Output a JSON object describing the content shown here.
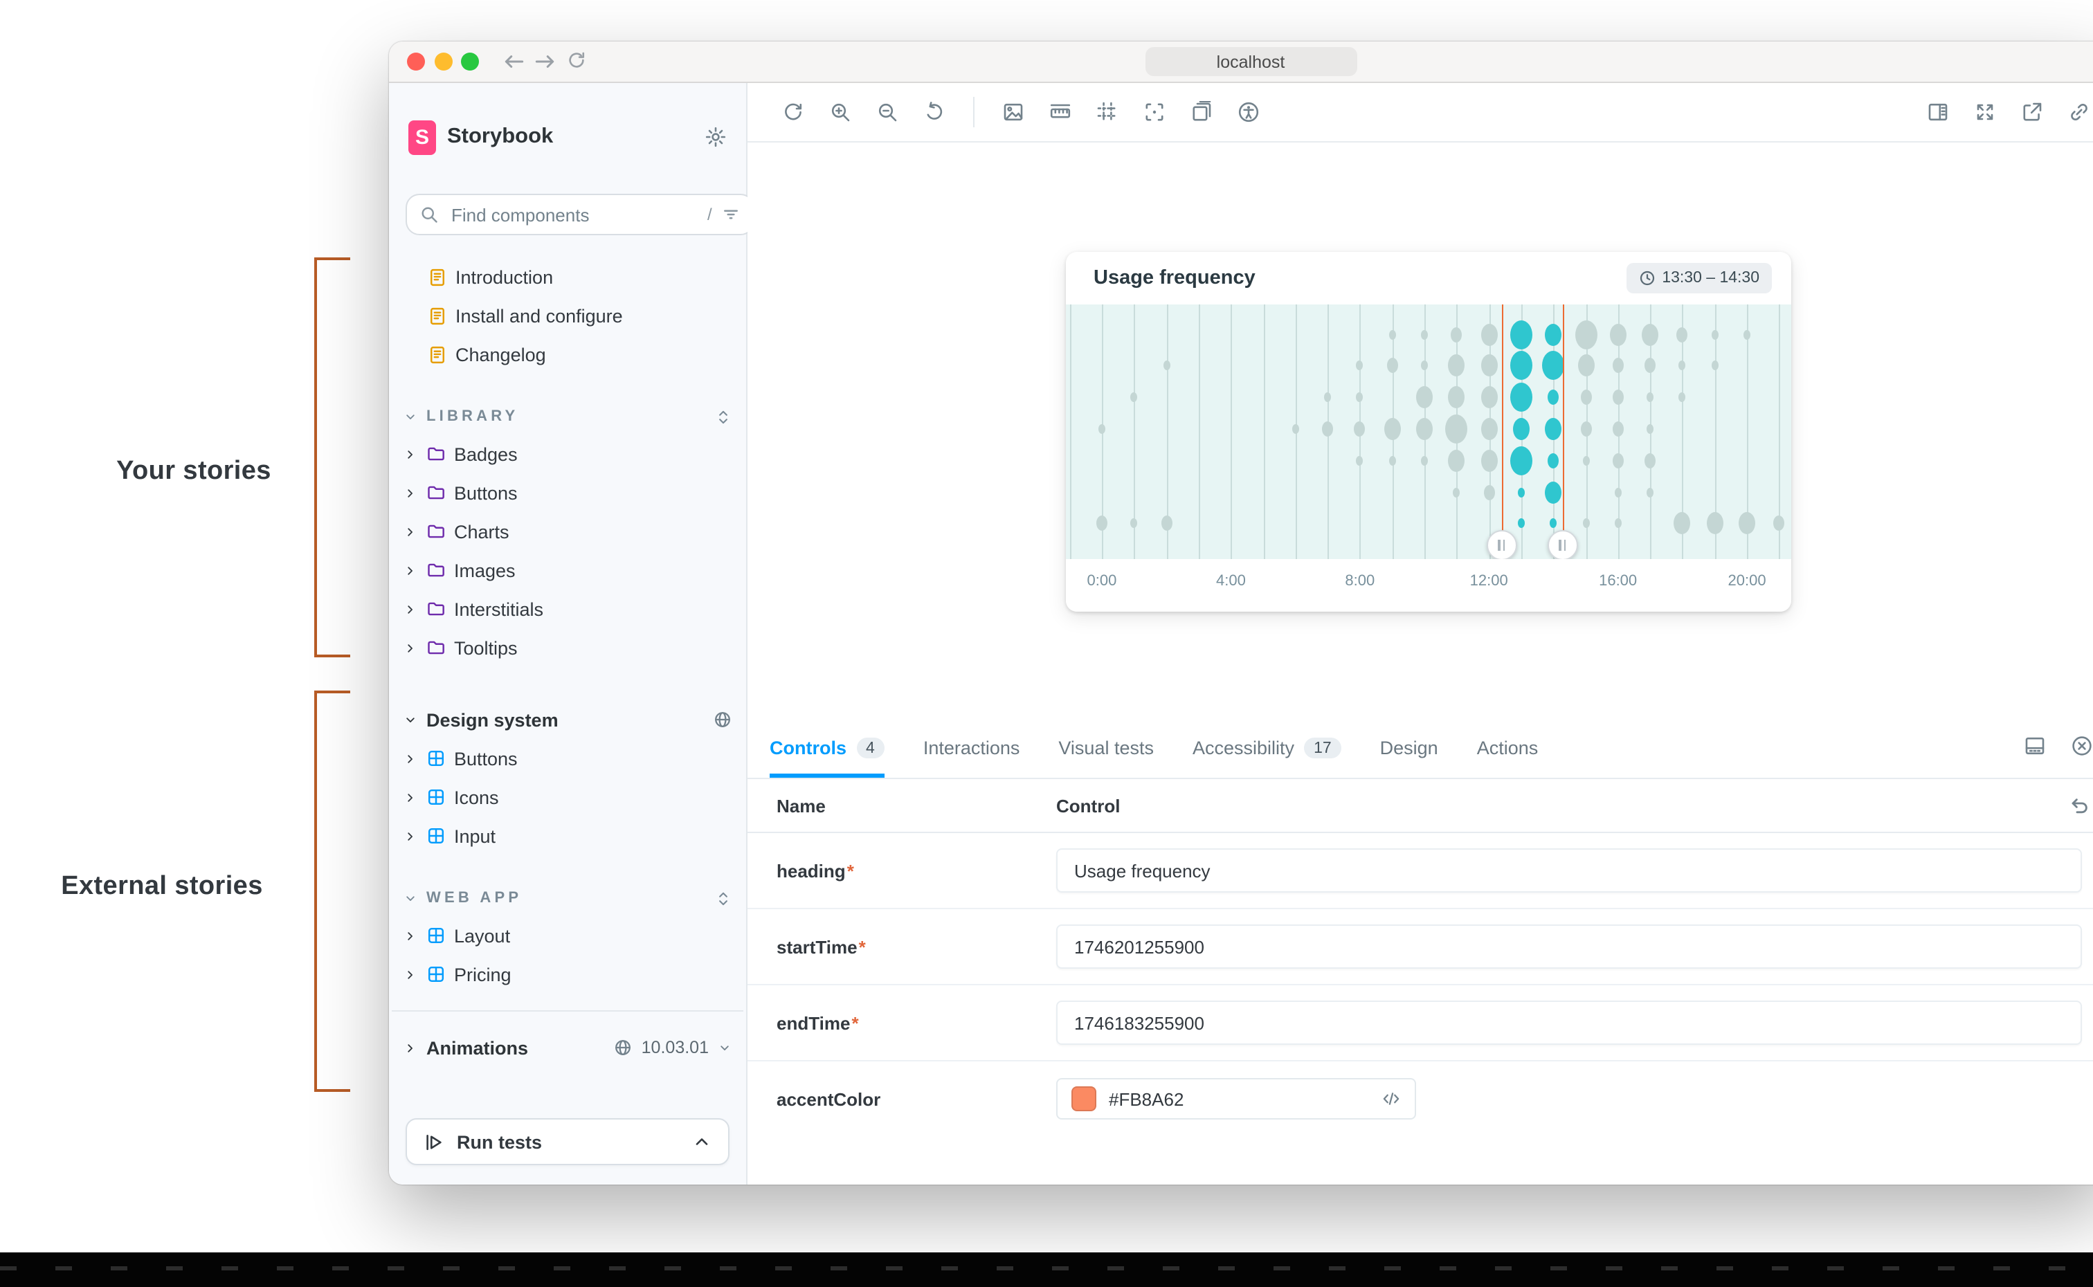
{
  "annotations": {
    "your_stories": "Your stories",
    "external_stories": "External stories"
  },
  "window": {
    "url": "localhost"
  },
  "sidebar": {
    "brand": "Storybook",
    "search": {
      "placeholder": "Find components",
      "shortcut": "/"
    },
    "docs": [
      "Introduction",
      "Install and configure",
      "Changelog"
    ],
    "library": {
      "label": "LIBRARY",
      "items": [
        "Badges",
        "Buttons",
        "Charts",
        "Images",
        "Interstitials",
        "Tooltips"
      ]
    },
    "design_system": {
      "label": "Design system",
      "items": [
        "Buttons",
        "Icons",
        "Input"
      ]
    },
    "web_app": {
      "label": "WEB APP",
      "items": [
        "Layout",
        "Pricing"
      ]
    },
    "animations": {
      "label": "Animations",
      "version": "10.03.01"
    },
    "run_tests_label": "Run tests"
  },
  "panel": {
    "tabs": [
      {
        "label": "Controls",
        "badge": "4",
        "active": true
      },
      {
        "label": "Interactions",
        "badge": null,
        "active": false
      },
      {
        "label": "Visual tests",
        "badge": null,
        "active": false
      },
      {
        "label": "Accessibility",
        "badge": "17",
        "active": false
      },
      {
        "label": "Design",
        "badge": null,
        "active": false
      },
      {
        "label": "Actions",
        "badge": null,
        "active": false
      }
    ],
    "table": {
      "name_header": "Name",
      "control_header": "Control"
    },
    "rows": [
      {
        "name": "heading",
        "required": true,
        "type": "text",
        "value": "Usage frequency"
      },
      {
        "name": "startTime",
        "required": true,
        "type": "text",
        "value": "1746201255900"
      },
      {
        "name": "endTime",
        "required": true,
        "type": "text",
        "value": "1746183255900"
      },
      {
        "name": "accentColor",
        "required": false,
        "type": "color",
        "value": "#FB8A62"
      }
    ]
  },
  "chart_data": {
    "type": "bubble-timeline",
    "title": "Usage frequency",
    "time_badge": "13:30 – 14:30",
    "x_ticks": [
      {
        "hour": 0,
        "label": "0:00"
      },
      {
        "hour": 4,
        "label": "4:00"
      },
      {
        "hour": 8,
        "label": "8:00"
      },
      {
        "hour": 12,
        "label": "12:00"
      },
      {
        "hour": 16,
        "label": "16:00"
      },
      {
        "hour": 20,
        "label": "20:00"
      }
    ],
    "hour_frac_start": 0.0496,
    "hour_frac_step": 0.04447,
    "gridline_hours_max": 21,
    "row_tops_pct": [
      12,
      24,
      36.5,
      49,
      61.5,
      74,
      86
    ],
    "selection": {
      "start_label": "13:30",
      "end_label": "14:30",
      "start_frac": 0.601,
      "end_frac": 0.685
    },
    "highlight_hours": [
      13,
      14
    ],
    "bubbles": [
      [
        [
          9,
          1
        ],
        [
          10,
          1
        ],
        [
          11,
          2
        ],
        [
          12,
          3
        ],
        [
          13,
          4
        ],
        [
          14,
          3
        ],
        [
          15,
          4
        ],
        [
          16,
          3
        ],
        [
          17,
          3
        ],
        [
          18,
          2
        ],
        [
          19,
          1
        ],
        [
          20,
          1
        ]
      ],
      [
        [
          2,
          1
        ],
        [
          8,
          1
        ],
        [
          9,
          2
        ],
        [
          10,
          1
        ],
        [
          11,
          3
        ],
        [
          12,
          3
        ],
        [
          13,
          4
        ],
        [
          14,
          4
        ],
        [
          15,
          3
        ],
        [
          16,
          2
        ],
        [
          17,
          2
        ],
        [
          18,
          1
        ],
        [
          19,
          1
        ]
      ],
      [
        [
          1,
          1
        ],
        [
          7,
          1
        ],
        [
          8,
          1
        ],
        [
          10,
          3
        ],
        [
          11,
          3
        ],
        [
          12,
          3
        ],
        [
          13,
          4
        ],
        [
          14,
          2
        ],
        [
          15,
          2
        ],
        [
          16,
          2
        ],
        [
          17,
          1
        ],
        [
          18,
          1
        ]
      ],
      [
        [
          0,
          1
        ],
        [
          6,
          1
        ],
        [
          7,
          2
        ],
        [
          8,
          2
        ],
        [
          9,
          3
        ],
        [
          10,
          3
        ],
        [
          11,
          4
        ],
        [
          12,
          3
        ],
        [
          13,
          3
        ],
        [
          14,
          3
        ],
        [
          15,
          2
        ],
        [
          16,
          2
        ],
        [
          17,
          1
        ]
      ],
      [
        [
          8,
          1
        ],
        [
          9,
          1
        ],
        [
          10,
          1
        ],
        [
          11,
          3
        ],
        [
          12,
          3
        ],
        [
          13,
          4
        ],
        [
          14,
          2
        ],
        [
          15,
          1
        ],
        [
          16,
          2
        ],
        [
          17,
          2
        ]
      ],
      [
        [
          11,
          1
        ],
        [
          12,
          2
        ],
        [
          13,
          1
        ],
        [
          14,
          3
        ],
        [
          16,
          1
        ],
        [
          17,
          1
        ]
      ],
      [
        [
          0,
          2
        ],
        [
          1,
          1
        ],
        [
          2,
          2
        ],
        [
          13,
          1
        ],
        [
          14,
          1
        ],
        [
          15,
          1
        ],
        [
          16,
          1
        ],
        [
          18,
          3
        ],
        [
          19,
          3
        ],
        [
          20,
          3
        ],
        [
          21,
          2
        ]
      ]
    ],
    "colors": {
      "chart_bg": "#E7F5F4",
      "grid": "#C9DCDB",
      "bubble": "#C4D6D4",
      "bubble_highlight": "#2FC6CF",
      "selection_line": "#ED6A32",
      "accent_blue": "#029CFD",
      "brand_pink": "#FF4785",
      "swatch": "#FB8A62",
      "bracket": "#B85C26"
    }
  }
}
